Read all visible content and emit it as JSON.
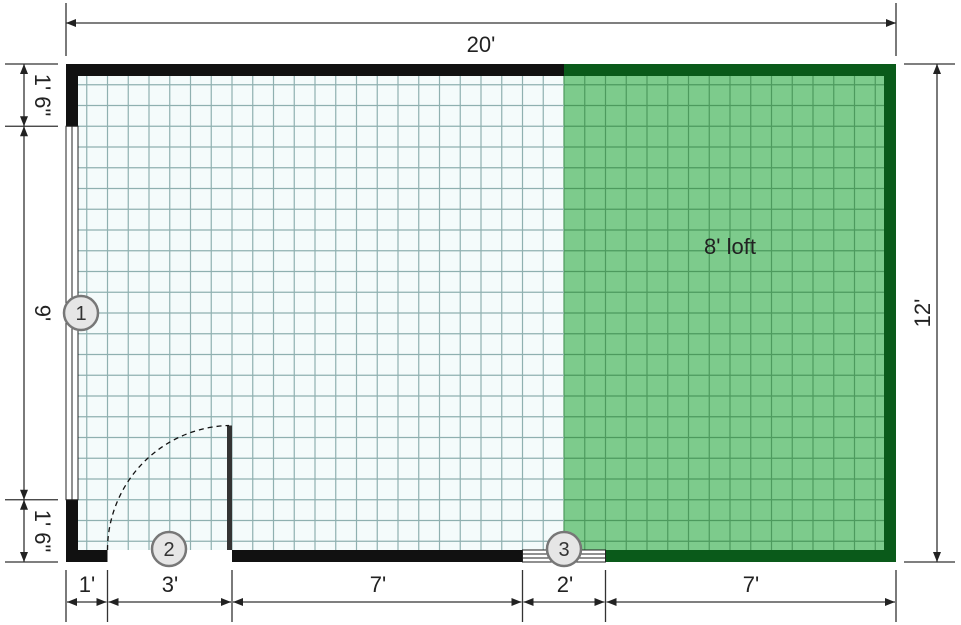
{
  "plan": {
    "overall_width": "20'",
    "overall_depth": "12'",
    "left_top_segment": "1' 6\"",
    "left_middle_segment": "9'",
    "left_bottom_segment": "1' 6\"",
    "bottom_segments": [
      "1'",
      "3'",
      "7'",
      "2'",
      "7'"
    ],
    "loft_label": "8'  loft",
    "markers": [
      "1",
      "2",
      "3"
    ]
  },
  "colors": {
    "wall": "#111111",
    "loft_fill": "#7dcb8c",
    "loft_wall": "#0a5a1a",
    "grid": "#8fb0b0",
    "floor": "#f4fbfb"
  }
}
